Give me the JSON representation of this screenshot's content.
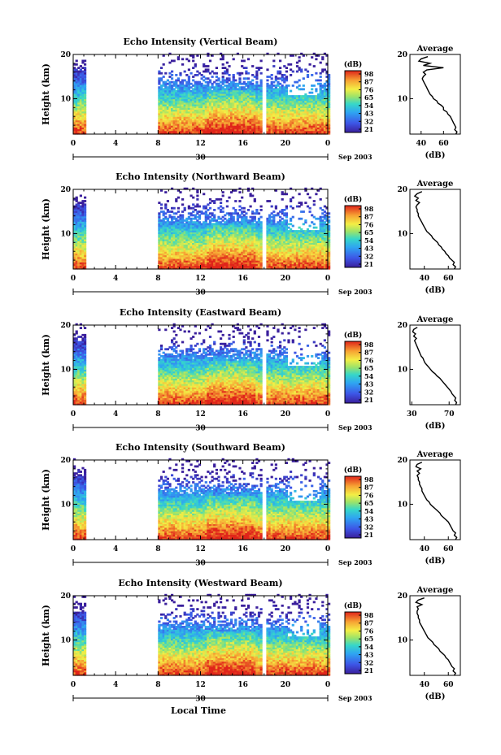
{
  "figure": {
    "xlabel_bottom": "Local Time",
    "day_label": "30",
    "date_label": "Sep 2003"
  },
  "chart_data": [
    {
      "type": "heatmap",
      "title": "Echo Intensity (Vertical Beam)",
      "xlabel": "Local Time",
      "ylabel": "Height (km)",
      "x_ticks": [
        "0",
        "4",
        "8",
        "12",
        "16",
        "20",
        "0"
      ],
      "y_ticks": [
        "10",
        "20"
      ],
      "xlim": [
        0,
        24
      ],
      "ylim": [
        2,
        20
      ],
      "colorbar": {
        "label": "(dB)",
        "ticks": [
          "98",
          "87",
          "76",
          "65",
          "54",
          "43",
          "32",
          "21"
        ],
        "range": [
          21,
          98
        ]
      },
      "data_gaps_hours": [
        [
          1.2,
          8.0
        ],
        [
          17.8,
          18.1
        ]
      ],
      "profile": {
        "title": "Average",
        "xlabel": "(dB)",
        "x_ticks": [
          "40",
          "60"
        ],
        "y_ticks": [
          "10",
          "20"
        ],
        "xlim": [
          30,
          75
        ],
        "points": [
          [
            46,
            19.5
          ],
          [
            40,
            19
          ],
          [
            38,
            18.5
          ],
          [
            48,
            18
          ],
          [
            42,
            17.5
          ],
          [
            60,
            17
          ],
          [
            45,
            16.5
          ],
          [
            42,
            16
          ],
          [
            44,
            15.5
          ],
          [
            42,
            15
          ],
          [
            41,
            14.5
          ],
          [
            42,
            14
          ],
          [
            43,
            13.5
          ],
          [
            44,
            13
          ],
          [
            45,
            12.5
          ],
          [
            46,
            12
          ],
          [
            47,
            11.5
          ],
          [
            48,
            11
          ],
          [
            50,
            10.5
          ],
          [
            51,
            10
          ],
          [
            54,
            9.5
          ],
          [
            55,
            9
          ],
          [
            58,
            8.5
          ],
          [
            60,
            8
          ],
          [
            60,
            7.5
          ],
          [
            63,
            7
          ],
          [
            64,
            6.5
          ],
          [
            66,
            6
          ],
          [
            67,
            5.5
          ],
          [
            68,
            5
          ],
          [
            69,
            4.5
          ],
          [
            70,
            4
          ],
          [
            71,
            3.5
          ],
          [
            70,
            3
          ],
          [
            72,
            2.5
          ],
          [
            71,
            2
          ]
        ]
      }
    },
    {
      "type": "heatmap",
      "title": "Echo Intensity (Northward Beam)",
      "xlabel": "Local Time",
      "ylabel": "Height (km)",
      "x_ticks": [
        "0",
        "4",
        "8",
        "12",
        "16",
        "20",
        "0"
      ],
      "y_ticks": [
        "10",
        "20"
      ],
      "xlim": [
        0,
        24
      ],
      "ylim": [
        2,
        20
      ],
      "colorbar": {
        "label": "(dB)",
        "ticks": [
          "98",
          "87",
          "76",
          "65",
          "54",
          "43",
          "32",
          "21"
        ],
        "range": [
          21,
          98
        ]
      },
      "data_gaps_hours": [
        [
          1.2,
          8.0
        ],
        [
          17.8,
          18.1
        ]
      ],
      "profile": {
        "title": "Average",
        "xlabel": "(dB)",
        "x_ticks": [
          "40",
          "60"
        ],
        "y_ticks": [
          "10",
          "20"
        ],
        "xlim": [
          28,
          70
        ],
        "points": [
          [
            38,
            19.5
          ],
          [
            34,
            19
          ],
          [
            32,
            18.5
          ],
          [
            35,
            18
          ],
          [
            33,
            17.5
          ],
          [
            36,
            17
          ],
          [
            34,
            16.5
          ],
          [
            33,
            16
          ],
          [
            34,
            15.5
          ],
          [
            34,
            15
          ],
          [
            35,
            14.5
          ],
          [
            35,
            14
          ],
          [
            36,
            13.5
          ],
          [
            37,
            13
          ],
          [
            38,
            12.5
          ],
          [
            39,
            12
          ],
          [
            40,
            11.5
          ],
          [
            41,
            11
          ],
          [
            42,
            10.5
          ],
          [
            44,
            10
          ],
          [
            46,
            9.5
          ],
          [
            47,
            9
          ],
          [
            49,
            8.5
          ],
          [
            51,
            8
          ],
          [
            52,
            7.5
          ],
          [
            54,
            7
          ],
          [
            55,
            6.5
          ],
          [
            57,
            6
          ],
          [
            58,
            5.5
          ],
          [
            60,
            5
          ],
          [
            61,
            4.5
          ],
          [
            63,
            4
          ],
          [
            65,
            3.5
          ],
          [
            64,
            3
          ],
          [
            66,
            2.5
          ],
          [
            65,
            2
          ]
        ]
      }
    },
    {
      "type": "heatmap",
      "title": "Echo Intensity (Eastward Beam)",
      "xlabel": "Local Time",
      "ylabel": "Height (km)",
      "x_ticks": [
        "0",
        "4",
        "8",
        "12",
        "16",
        "20",
        "0"
      ],
      "y_ticks": [
        "10",
        "20"
      ],
      "xlim": [
        0,
        24
      ],
      "ylim": [
        2,
        20
      ],
      "colorbar": {
        "label": "(dB)",
        "ticks": [
          "98",
          "87",
          "76",
          "65",
          "54",
          "43",
          "32",
          "21"
        ],
        "range": [
          21,
          98
        ]
      },
      "data_gaps_hours": [
        [
          1.2,
          8.0
        ],
        [
          17.8,
          18.1
        ]
      ],
      "profile": {
        "title": "Average",
        "xlabel": "(dB)",
        "x_ticks": [
          "30",
          "70"
        ],
        "y_ticks": [
          "10",
          "20"
        ],
        "xlim": [
          28,
          82
        ],
        "points": [
          [
            36,
            19.5
          ],
          [
            32,
            19
          ],
          [
            31,
            18.5
          ],
          [
            34,
            18
          ],
          [
            32,
            17.5
          ],
          [
            35,
            17
          ],
          [
            33,
            16.5
          ],
          [
            34,
            16
          ],
          [
            35,
            15.5
          ],
          [
            36,
            15
          ],
          [
            37,
            14.5
          ],
          [
            38,
            14
          ],
          [
            39,
            13.5
          ],
          [
            40,
            13
          ],
          [
            42,
            12.5
          ],
          [
            43,
            12
          ],
          [
            44,
            11.5
          ],
          [
            46,
            11
          ],
          [
            48,
            10.5
          ],
          [
            50,
            10
          ],
          [
            52,
            9.5
          ],
          [
            55,
            9
          ],
          [
            57,
            8.5
          ],
          [
            60,
            8
          ],
          [
            62,
            7.5
          ],
          [
            64,
            7
          ],
          [
            66,
            6.5
          ],
          [
            68,
            6
          ],
          [
            70,
            5.5
          ],
          [
            72,
            5
          ],
          [
            73,
            4.5
          ],
          [
            75,
            4
          ],
          [
            77,
            3.5
          ],
          [
            76,
            3
          ],
          [
            78,
            2.5
          ],
          [
            77,
            2
          ]
        ]
      }
    },
    {
      "type": "heatmap",
      "title": "Echo Intensity (Southward Beam)",
      "xlabel": "Local Time",
      "ylabel": "Height (km)",
      "x_ticks": [
        "0",
        "4",
        "8",
        "12",
        "16",
        "20",
        "0"
      ],
      "y_ticks": [
        "10",
        "20"
      ],
      "xlim": [
        0,
        24
      ],
      "ylim": [
        2,
        20
      ],
      "colorbar": {
        "label": "(dB)",
        "ticks": [
          "98",
          "87",
          "76",
          "65",
          "54",
          "43",
          "32",
          "21"
        ],
        "range": [
          21,
          98
        ]
      },
      "data_gaps_hours": [
        [
          1.2,
          8.0
        ],
        [
          17.8,
          18.1
        ]
      ],
      "profile": {
        "title": "Average",
        "xlabel": "(dB)",
        "x_ticks": [
          "40",
          "60"
        ],
        "y_ticks": [
          "10",
          "20"
        ],
        "xlim": [
          28,
          70
        ],
        "points": [
          [
            38,
            19.5
          ],
          [
            34,
            19
          ],
          [
            33,
            18.5
          ],
          [
            37,
            18
          ],
          [
            34,
            17.5
          ],
          [
            36,
            17
          ],
          [
            34,
            16.5
          ],
          [
            35,
            16
          ],
          [
            35,
            15.5
          ],
          [
            36,
            15
          ],
          [
            36,
            14.5
          ],
          [
            37,
            14
          ],
          [
            38,
            13.5
          ],
          [
            38,
            13
          ],
          [
            39,
            12.5
          ],
          [
            40,
            12
          ],
          [
            41,
            11.5
          ],
          [
            42,
            11
          ],
          [
            44,
            10.5
          ],
          [
            45,
            10
          ],
          [
            47,
            9.5
          ],
          [
            49,
            9
          ],
          [
            51,
            8.5
          ],
          [
            53,
            8
          ],
          [
            54,
            7.5
          ],
          [
            56,
            7
          ],
          [
            58,
            6.5
          ],
          [
            60,
            6
          ],
          [
            61,
            5.5
          ],
          [
            62,
            5
          ],
          [
            63,
            4.5
          ],
          [
            64,
            4
          ],
          [
            66,
            3.5
          ],
          [
            65,
            3
          ],
          [
            67,
            2.5
          ],
          [
            66,
            2
          ]
        ]
      }
    },
    {
      "type": "heatmap",
      "title": "Echo Intensity (Westward Beam)",
      "xlabel": "Local Time",
      "ylabel": "Height (km)",
      "x_ticks": [
        "0",
        "4",
        "8",
        "12",
        "16",
        "20",
        "0"
      ],
      "y_ticks": [
        "10",
        "20"
      ],
      "xlim": [
        0,
        24
      ],
      "ylim": [
        2,
        20
      ],
      "colorbar": {
        "label": "(dB)",
        "ticks": [
          "98",
          "87",
          "76",
          "65",
          "54",
          "43",
          "32",
          "21"
        ],
        "range": [
          21,
          98
        ]
      },
      "data_gaps_hours": [
        [
          1.2,
          8.0
        ],
        [
          17.8,
          18.1
        ]
      ],
      "profile": {
        "title": "Average",
        "xlabel": "(dB)",
        "x_ticks": [
          "40",
          "60"
        ],
        "y_ticks": [
          "10",
          "20"
        ],
        "xlim": [
          28,
          70
        ],
        "points": [
          [
            40,
            19.5
          ],
          [
            35,
            19
          ],
          [
            33,
            18.5
          ],
          [
            38,
            18
          ],
          [
            34,
            17.5
          ],
          [
            35,
            17
          ],
          [
            34,
            16.5
          ],
          [
            34,
            16
          ],
          [
            35,
            15.5
          ],
          [
            35,
            15
          ],
          [
            36,
            14.5
          ],
          [
            36,
            14
          ],
          [
            37,
            13.5
          ],
          [
            38,
            13
          ],
          [
            39,
            12.5
          ],
          [
            40,
            12
          ],
          [
            41,
            11.5
          ],
          [
            42,
            11
          ],
          [
            43,
            10.5
          ],
          [
            45,
            10
          ],
          [
            47,
            9.5
          ],
          [
            48,
            9
          ],
          [
            50,
            8.5
          ],
          [
            52,
            8
          ],
          [
            53,
            7.5
          ],
          [
            55,
            7
          ],
          [
            57,
            6.5
          ],
          [
            58,
            6
          ],
          [
            60,
            5.5
          ],
          [
            61,
            5
          ],
          [
            62,
            4.5
          ],
          [
            63,
            4
          ],
          [
            65,
            3.5
          ],
          [
            64,
            3
          ],
          [
            66,
            2.5
          ],
          [
            65,
            2
          ]
        ]
      }
    }
  ]
}
